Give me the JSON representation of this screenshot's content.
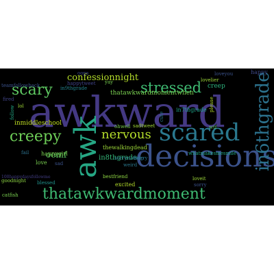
{
  "word_cloud": {
    "background_color": "#000000",
    "page_color": "#ffffff",
    "words": [
      {
        "text": "awkward",
        "color": "#443983"
      },
      {
        "text": "decisions",
        "color": "#3b528b"
      },
      {
        "text": "scared",
        "color": "#2a788e"
      },
      {
        "text": "awk",
        "color": "#26a784"
      },
      {
        "text": "thatawkwardmoment",
        "color": "#3fbc73"
      },
      {
        "text": "in6thgrade",
        "color": "#2c728e"
      },
      {
        "text": "stressed",
        "color": "#3fbc73"
      },
      {
        "text": "creepy",
        "color": "#6ece58"
      },
      {
        "text": "scary",
        "color": "#5ec962"
      },
      {
        "text": "nervous",
        "color": "#b5de2b"
      },
      {
        "text": "confessionnight",
        "color": "#b5de2b"
      },
      {
        "text": "thatawkwardmomentwhen",
        "color": "#7ad151"
      },
      {
        "text": "oomf",
        "color": "#5ec962"
      },
      {
        "text": "in7thgrade",
        "color": "#1fa187"
      },
      {
        "text": "in8thgrade",
        "color": "#35b779"
      },
      {
        "text": "inmiddleschool",
        "color": "#c2df23"
      },
      {
        "text": "happygirl",
        "color": "#7ad151"
      },
      {
        "text": "in9thgrade",
        "color": "#25858e"
      },
      {
        "text": "creep",
        "color": "#2db27d"
      },
      {
        "text": "thewalkingdead",
        "color": "#9fda3a"
      },
      {
        "text": "bestfriend",
        "color": "#8fd744"
      },
      {
        "text": "excited",
        "color": "#b5de2b"
      },
      {
        "text": "whatmakesmesmile",
        "color": "#22a785"
      },
      {
        "text": "love",
        "color": "#7ad151"
      },
      {
        "text": "happy",
        "color": "#3e4989"
      },
      {
        "text": "loveyou",
        "color": "#3b528b"
      },
      {
        "text": "happytweet",
        "color": "#404387"
      },
      {
        "text": "teamfollowback",
        "color": "#3b528b"
      },
      {
        "text": "follow",
        "color": "#22a785"
      },
      {
        "text": "fired",
        "color": "#414487"
      },
      {
        "text": "lol",
        "color": "#a2da37"
      },
      {
        "text": "fail",
        "color": "#2c728e"
      },
      {
        "text": "sad",
        "color": "#3b528b"
      },
      {
        "text": "blessed",
        "color": "#20928c"
      },
      {
        "text": "goodnight",
        "color": "#8fd744"
      },
      {
        "text": "catfish",
        "color": "#7ad151"
      },
      {
        "text": "oops",
        "color": "#3e4989"
      },
      {
        "text": "ohwell",
        "color": "#7ad151"
      },
      {
        "text": "sadtweet",
        "color": "#a2da37"
      },
      {
        "text": "sorrynotsorry",
        "color": "#2a788e"
      },
      {
        "text": "help",
        "color": "#2c728e"
      },
      {
        "text": "weird",
        "color": "#2a788e"
      },
      {
        "text": "sorry",
        "color": "#3b528b"
      },
      {
        "text": "loveit",
        "color": "#9fda3a"
      },
      {
        "text": "lovelier",
        "color": "#9fda3a"
      },
      {
        "text": "yay",
        "color": "#7ad151"
      },
      {
        "text": "wtf",
        "color": "#5ec962"
      },
      {
        "text": "please",
        "color": "#b5de2b"
      },
      {
        "text": "cute",
        "color": "#2a788e"
      },
      {
        "text": "100happydaysfollowme",
        "color": "#433e85"
      }
    ]
  }
}
